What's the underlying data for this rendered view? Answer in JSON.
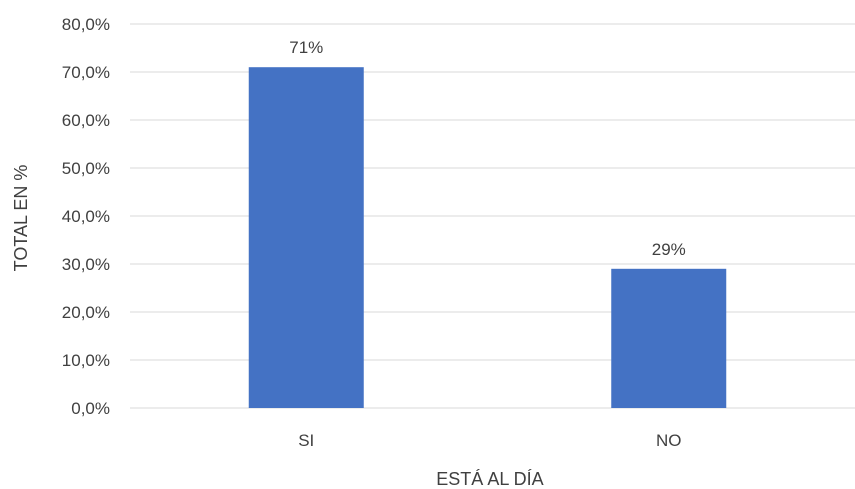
{
  "chart_data": {
    "type": "bar",
    "categories": [
      "SI",
      "NO"
    ],
    "values": [
      71,
      29
    ],
    "data_labels": [
      "71%",
      "29%"
    ],
    "title": "",
    "xlabel": "ESTÁ AL DÍA",
    "ylabel": "TOTAL EN %",
    "ylim": [
      0,
      80
    ],
    "ytick_values": [
      0,
      10,
      20,
      30,
      40,
      50,
      60,
      70,
      80
    ],
    "ytick_labels": [
      "0,0%",
      "10,0%",
      "20,0%",
      "30,0%",
      "40,0%",
      "50,0%",
      "60,0%",
      "70,0%",
      "80,0%"
    ],
    "grid": true,
    "legend": "none",
    "bar_color": "#4472c4"
  }
}
